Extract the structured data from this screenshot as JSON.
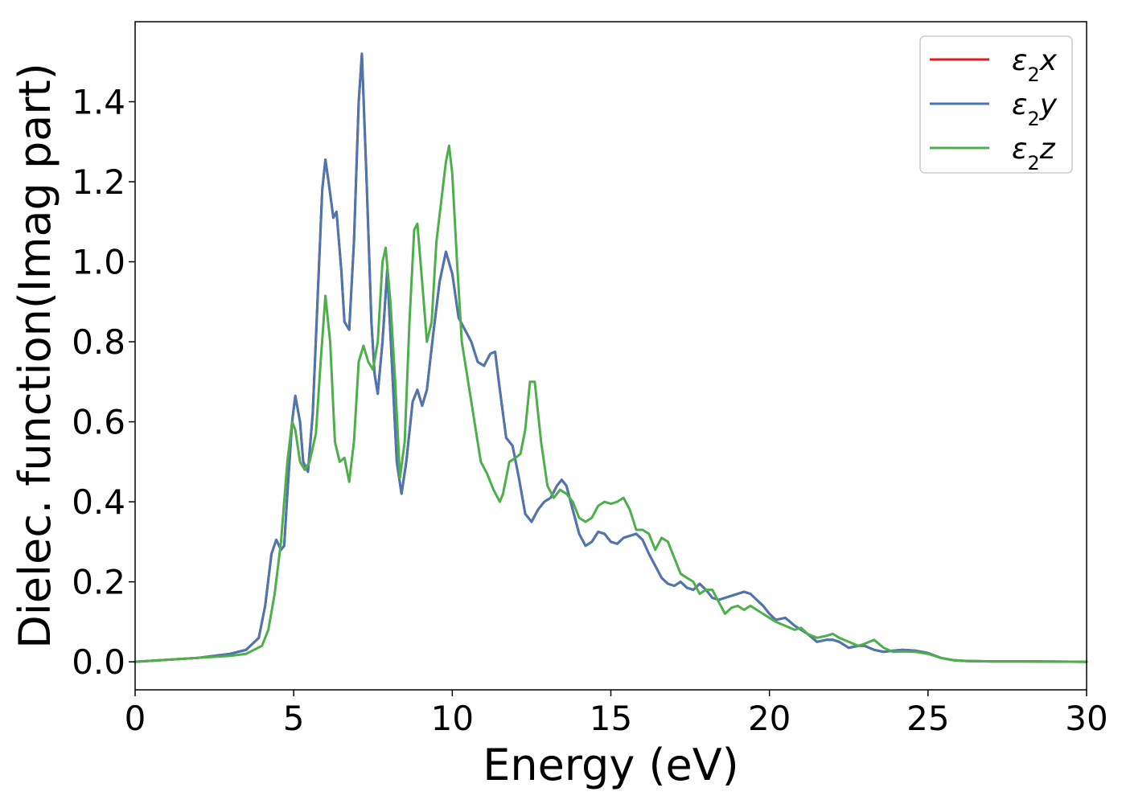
{
  "chart_data": {
    "type": "line",
    "xlabel": "Energy (eV)",
    "ylabel": "Dielec. function(Imag part)",
    "xlim": [
      0,
      30
    ],
    "ylim": [
      -0.07,
      1.6
    ],
    "xticks": [
      0,
      5,
      10,
      15,
      20,
      25,
      30
    ],
    "xtick_labels": [
      "0",
      "5",
      "10",
      "15",
      "20",
      "25",
      "30"
    ],
    "yticks": [
      0.0,
      0.2,
      0.4,
      0.6,
      0.8,
      1.0,
      1.2,
      1.4
    ],
    "ytick_labels": [
      "0.0",
      "0.2",
      "0.4",
      "0.6",
      "0.8",
      "1.0",
      "1.2",
      "1.4"
    ],
    "grid": false,
    "legend_position": "top-right",
    "series": [
      {
        "name": "ε₂x",
        "legend_base": "ε",
        "legend_sub": "2",
        "legend_tail": "x",
        "color": "#e41a1c",
        "x": [
          0,
          2,
          3,
          3.5,
          3.9,
          4.1,
          4.3,
          4.45,
          4.6,
          4.7,
          4.8,
          4.95,
          5.05,
          5.2,
          5.3,
          5.45,
          5.6,
          5.75,
          5.9,
          6.0,
          6.1,
          6.25,
          6.35,
          6.5,
          6.6,
          6.75,
          6.9,
          7.05,
          7.15,
          7.3,
          7.45,
          7.55,
          7.65,
          7.8,
          7.95,
          8.1,
          8.25,
          8.4,
          8.55,
          8.75,
          8.9,
          9.05,
          9.2,
          9.4,
          9.6,
          9.8,
          10.0,
          10.2,
          10.4,
          10.6,
          10.8,
          11.0,
          11.2,
          11.35,
          11.5,
          11.7,
          11.9,
          12.1,
          12.3,
          12.5,
          12.7,
          12.9,
          13.1,
          13.3,
          13.45,
          13.6,
          13.8,
          14.0,
          14.2,
          14.4,
          14.6,
          14.8,
          15.0,
          15.2,
          15.4,
          15.6,
          15.8,
          16.0,
          16.2,
          16.4,
          16.6,
          16.8,
          17.0,
          17.2,
          17.4,
          17.6,
          17.8,
          18.0,
          18.2,
          18.4,
          18.6,
          18.8,
          19.0,
          19.2,
          19.4,
          19.6,
          19.8,
          20.0,
          20.2,
          20.5,
          20.8,
          21.0,
          21.2,
          21.5,
          21.8,
          22.0,
          22.2,
          22.5,
          22.8,
          23.0,
          23.3,
          23.6,
          23.9,
          24.2,
          24.6,
          25.0,
          25.4,
          25.8,
          26.2,
          27.0,
          28.0,
          30.0
        ],
        "y": [
          0.0,
          0.01,
          0.02,
          0.03,
          0.06,
          0.14,
          0.27,
          0.305,
          0.28,
          0.29,
          0.42,
          0.6,
          0.665,
          0.6,
          0.5,
          0.475,
          0.62,
          0.9,
          1.18,
          1.255,
          1.2,
          1.11,
          1.125,
          0.98,
          0.85,
          0.83,
          1.05,
          1.4,
          1.52,
          1.2,
          0.85,
          0.72,
          0.67,
          0.8,
          0.98,
          0.74,
          0.5,
          0.42,
          0.5,
          0.65,
          0.68,
          0.64,
          0.68,
          0.82,
          0.95,
          1.025,
          0.97,
          0.86,
          0.83,
          0.8,
          0.75,
          0.74,
          0.77,
          0.775,
          0.68,
          0.56,
          0.54,
          0.46,
          0.37,
          0.35,
          0.38,
          0.4,
          0.41,
          0.44,
          0.455,
          0.44,
          0.38,
          0.32,
          0.29,
          0.3,
          0.325,
          0.32,
          0.3,
          0.295,
          0.31,
          0.315,
          0.32,
          0.305,
          0.27,
          0.24,
          0.21,
          0.195,
          0.19,
          0.2,
          0.185,
          0.18,
          0.195,
          0.18,
          0.16,
          0.155,
          0.16,
          0.165,
          0.17,
          0.175,
          0.17,
          0.155,
          0.14,
          0.12,
          0.105,
          0.11,
          0.09,
          0.08,
          0.07,
          0.05,
          0.055,
          0.055,
          0.05,
          0.035,
          0.04,
          0.04,
          0.03,
          0.025,
          0.028,
          0.03,
          0.028,
          0.022,
          0.01,
          0.004,
          0.002,
          0.001,
          0.001,
          0.0
        ]
      },
      {
        "name": "ε₂y",
        "legend_base": "ε",
        "legend_sub": "2",
        "legend_tail": "y",
        "color": "#4a77b0",
        "x": [
          0,
          2,
          3,
          3.5,
          3.9,
          4.1,
          4.3,
          4.45,
          4.6,
          4.7,
          4.8,
          4.95,
          5.05,
          5.2,
          5.3,
          5.45,
          5.6,
          5.75,
          5.9,
          6.0,
          6.1,
          6.25,
          6.35,
          6.5,
          6.6,
          6.75,
          6.9,
          7.05,
          7.15,
          7.3,
          7.45,
          7.55,
          7.65,
          7.8,
          7.95,
          8.1,
          8.25,
          8.4,
          8.55,
          8.75,
          8.9,
          9.05,
          9.2,
          9.4,
          9.6,
          9.8,
          10.0,
          10.2,
          10.4,
          10.6,
          10.8,
          11.0,
          11.2,
          11.35,
          11.5,
          11.7,
          11.9,
          12.1,
          12.3,
          12.5,
          12.7,
          12.9,
          13.1,
          13.3,
          13.45,
          13.6,
          13.8,
          14.0,
          14.2,
          14.4,
          14.6,
          14.8,
          15.0,
          15.2,
          15.4,
          15.6,
          15.8,
          16.0,
          16.2,
          16.4,
          16.6,
          16.8,
          17.0,
          17.2,
          17.4,
          17.6,
          17.8,
          18.0,
          18.2,
          18.4,
          18.6,
          18.8,
          19.0,
          19.2,
          19.4,
          19.6,
          19.8,
          20.0,
          20.2,
          20.5,
          20.8,
          21.0,
          21.2,
          21.5,
          21.8,
          22.0,
          22.2,
          22.5,
          22.8,
          23.0,
          23.3,
          23.6,
          23.9,
          24.2,
          24.6,
          25.0,
          25.4,
          25.8,
          26.2,
          27.0,
          28.0,
          30.0
        ],
        "y": [
          0.0,
          0.01,
          0.02,
          0.03,
          0.06,
          0.14,
          0.27,
          0.305,
          0.28,
          0.29,
          0.42,
          0.6,
          0.665,
          0.6,
          0.5,
          0.475,
          0.62,
          0.9,
          1.18,
          1.255,
          1.2,
          1.11,
          1.125,
          0.98,
          0.85,
          0.83,
          1.05,
          1.4,
          1.52,
          1.2,
          0.85,
          0.72,
          0.67,
          0.8,
          0.98,
          0.74,
          0.5,
          0.42,
          0.5,
          0.65,
          0.68,
          0.64,
          0.68,
          0.82,
          0.95,
          1.025,
          0.97,
          0.86,
          0.83,
          0.8,
          0.75,
          0.74,
          0.77,
          0.775,
          0.68,
          0.56,
          0.54,
          0.46,
          0.37,
          0.35,
          0.38,
          0.4,
          0.41,
          0.44,
          0.455,
          0.44,
          0.38,
          0.32,
          0.29,
          0.3,
          0.325,
          0.32,
          0.3,
          0.295,
          0.31,
          0.315,
          0.32,
          0.305,
          0.27,
          0.24,
          0.21,
          0.195,
          0.19,
          0.2,
          0.185,
          0.18,
          0.195,
          0.18,
          0.16,
          0.155,
          0.16,
          0.165,
          0.17,
          0.175,
          0.17,
          0.155,
          0.14,
          0.12,
          0.105,
          0.11,
          0.09,
          0.08,
          0.07,
          0.05,
          0.055,
          0.055,
          0.05,
          0.035,
          0.04,
          0.04,
          0.03,
          0.025,
          0.028,
          0.03,
          0.028,
          0.022,
          0.01,
          0.004,
          0.002,
          0.001,
          0.001,
          0.0
        ]
      },
      {
        "name": "ε₂z",
        "legend_base": "ε",
        "legend_sub": "2",
        "legend_tail": "z",
        "color": "#4daf4a",
        "x": [
          0,
          2,
          3,
          3.5,
          4.0,
          4.2,
          4.4,
          4.6,
          4.8,
          4.95,
          5.05,
          5.2,
          5.35,
          5.5,
          5.7,
          5.85,
          6.0,
          6.15,
          6.3,
          6.45,
          6.6,
          6.75,
          6.9,
          7.05,
          7.2,
          7.35,
          7.5,
          7.65,
          7.8,
          7.9,
          8.05,
          8.2,
          8.35,
          8.5,
          8.65,
          8.8,
          8.9,
          9.05,
          9.2,
          9.35,
          9.5,
          9.65,
          9.8,
          9.9,
          10.0,
          10.15,
          10.3,
          10.5,
          10.7,
          10.9,
          11.1,
          11.3,
          11.5,
          11.6,
          11.8,
          12.0,
          12.15,
          12.3,
          12.45,
          12.6,
          12.8,
          13.0,
          13.2,
          13.4,
          13.6,
          13.8,
          14.0,
          14.2,
          14.4,
          14.6,
          14.8,
          15.0,
          15.2,
          15.4,
          15.6,
          15.8,
          16.0,
          16.2,
          16.4,
          16.6,
          16.8,
          17.0,
          17.2,
          17.4,
          17.6,
          17.8,
          18.0,
          18.2,
          18.4,
          18.6,
          18.8,
          19.0,
          19.2,
          19.4,
          19.6,
          19.8,
          20.0,
          20.2,
          20.5,
          20.8,
          21.0,
          21.2,
          21.5,
          21.8,
          22.0,
          22.2,
          22.5,
          22.8,
          23.0,
          23.3,
          23.6,
          23.9,
          24.2,
          24.6,
          25.0,
          25.4,
          25.8,
          26.2,
          27.0,
          28.0,
          30.0
        ],
        "y": [
          0.0,
          0.01,
          0.015,
          0.02,
          0.04,
          0.08,
          0.17,
          0.3,
          0.5,
          0.6,
          0.58,
          0.5,
          0.48,
          0.5,
          0.57,
          0.75,
          0.915,
          0.8,
          0.55,
          0.5,
          0.51,
          0.45,
          0.55,
          0.75,
          0.79,
          0.75,
          0.73,
          0.8,
          1.0,
          1.035,
          0.9,
          0.7,
          0.46,
          0.55,
          0.85,
          1.08,
          1.095,
          0.95,
          0.8,
          0.85,
          1.05,
          1.15,
          1.25,
          1.29,
          1.22,
          1.0,
          0.8,
          0.7,
          0.6,
          0.5,
          0.47,
          0.43,
          0.4,
          0.42,
          0.5,
          0.51,
          0.52,
          0.58,
          0.7,
          0.7,
          0.55,
          0.44,
          0.41,
          0.43,
          0.42,
          0.4,
          0.36,
          0.35,
          0.36,
          0.39,
          0.4,
          0.395,
          0.4,
          0.41,
          0.38,
          0.33,
          0.33,
          0.32,
          0.28,
          0.31,
          0.3,
          0.26,
          0.22,
          0.21,
          0.2,
          0.17,
          0.18,
          0.18,
          0.15,
          0.12,
          0.135,
          0.14,
          0.13,
          0.14,
          0.13,
          0.12,
          0.11,
          0.1,
          0.09,
          0.08,
          0.085,
          0.07,
          0.06,
          0.065,
          0.07,
          0.06,
          0.05,
          0.04,
          0.045,
          0.055,
          0.035,
          0.025,
          0.026,
          0.025,
          0.02,
          0.01,
          0.004,
          0.002,
          0.001,
          0.001,
          0.0
        ]
      }
    ]
  }
}
